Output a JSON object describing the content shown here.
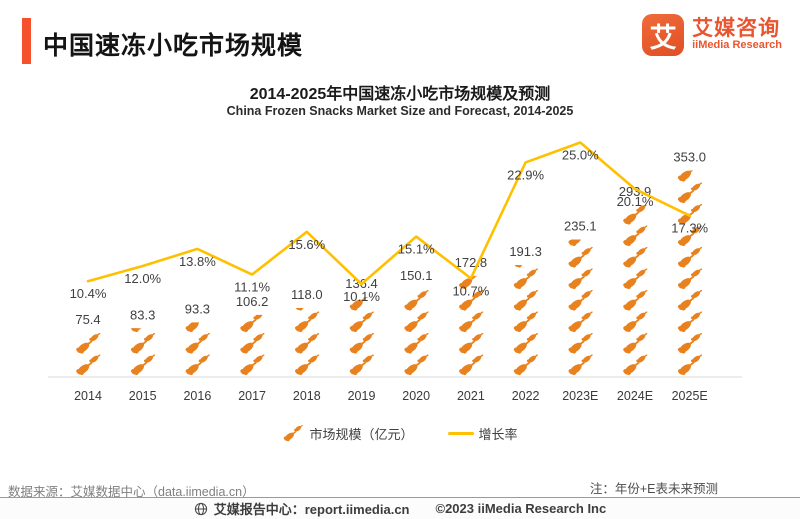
{
  "header": {
    "title": "中国速冻小吃市场规模",
    "logo": {
      "symbol": "艾",
      "name_cn": "艾媒咨询",
      "name_en": "iiMedia Research"
    }
  },
  "chart": {
    "title": "2014-2025年中国速冻小吃市场规模及预测",
    "subtitle": "China Frozen Snacks Market Size and Forecast, 2014-2025",
    "legend": [
      {
        "label": "市场规模（亿元）",
        "swatch": "snack-icon"
      },
      {
        "label": "增长率",
        "swatch": "yellow-line"
      }
    ]
  },
  "chart_data": {
    "type": "bar",
    "subtype": "pictorial-bar-with-line",
    "title": "2014-2025年中国速冻小吃市场规模及预测",
    "subtitle": "China Frozen Snacks Market Size and Forecast, 2014-2025",
    "categories": [
      "2014",
      "2015",
      "2016",
      "2017",
      "2018",
      "2019",
      "2020",
      "2021",
      "2022",
      "2023E",
      "2024E",
      "2025E"
    ],
    "series": [
      {
        "name": "市场规模（亿元）",
        "type": "pictorial-bar",
        "unit": "亿元",
        "color": "#e8821e",
        "values": [
          75.4,
          83.3,
          93.3,
          106.2,
          118.0,
          136.4,
          150.1,
          172.8,
          191.3,
          235.1,
          293.9,
          353.0
        ],
        "labels": [
          "75.4",
          "83.3",
          "93.3",
          "106.2",
          "118.0",
          "136.4",
          "150.1",
          "172.8",
          "191.3",
          "235.1",
          "293.9",
          "353.0"
        ]
      },
      {
        "name": "增长率",
        "type": "line",
        "unit": "%",
        "color": "#ffc000",
        "values": [
          10.4,
          12.0,
          13.8,
          11.1,
          15.6,
          10.1,
          15.1,
          10.7,
          22.9,
          25.0,
          20.1,
          17.3
        ],
        "labels": [
          "10.4%",
          "12.0%",
          "13.8%",
          "11.1%",
          "15.6%",
          "10.1%",
          "15.1%",
          "10.7%",
          "22.9%",
          "25.0%",
          "20.1%",
          "17.3%"
        ]
      }
    ],
    "xlabel": "",
    "ylabel": "市场规模（亿元）",
    "y2label": "增长率",
    "ylim": [
      0,
      400
    ],
    "y2lim": [
      0,
      30
    ],
    "grid": false,
    "legend_position": "bottom"
  },
  "footer": {
    "source": "数据来源：艾媒数据中心（data.iimedia.cn）",
    "note": "注：年份+E表未来预测",
    "report_center": "艾媒报告中心：report.iimedia.cn",
    "copyright": "©2023  iiMedia Research Inc"
  },
  "colors": {
    "accent_red": "#f4512c",
    "brand_orange": "#e8552f",
    "icon_orange": "#e8821e",
    "line_yellow": "#ffc000",
    "label_dark": "#404040",
    "axis_gray": "#d9d9d9",
    "footer_gray": "#7f7f7f"
  }
}
